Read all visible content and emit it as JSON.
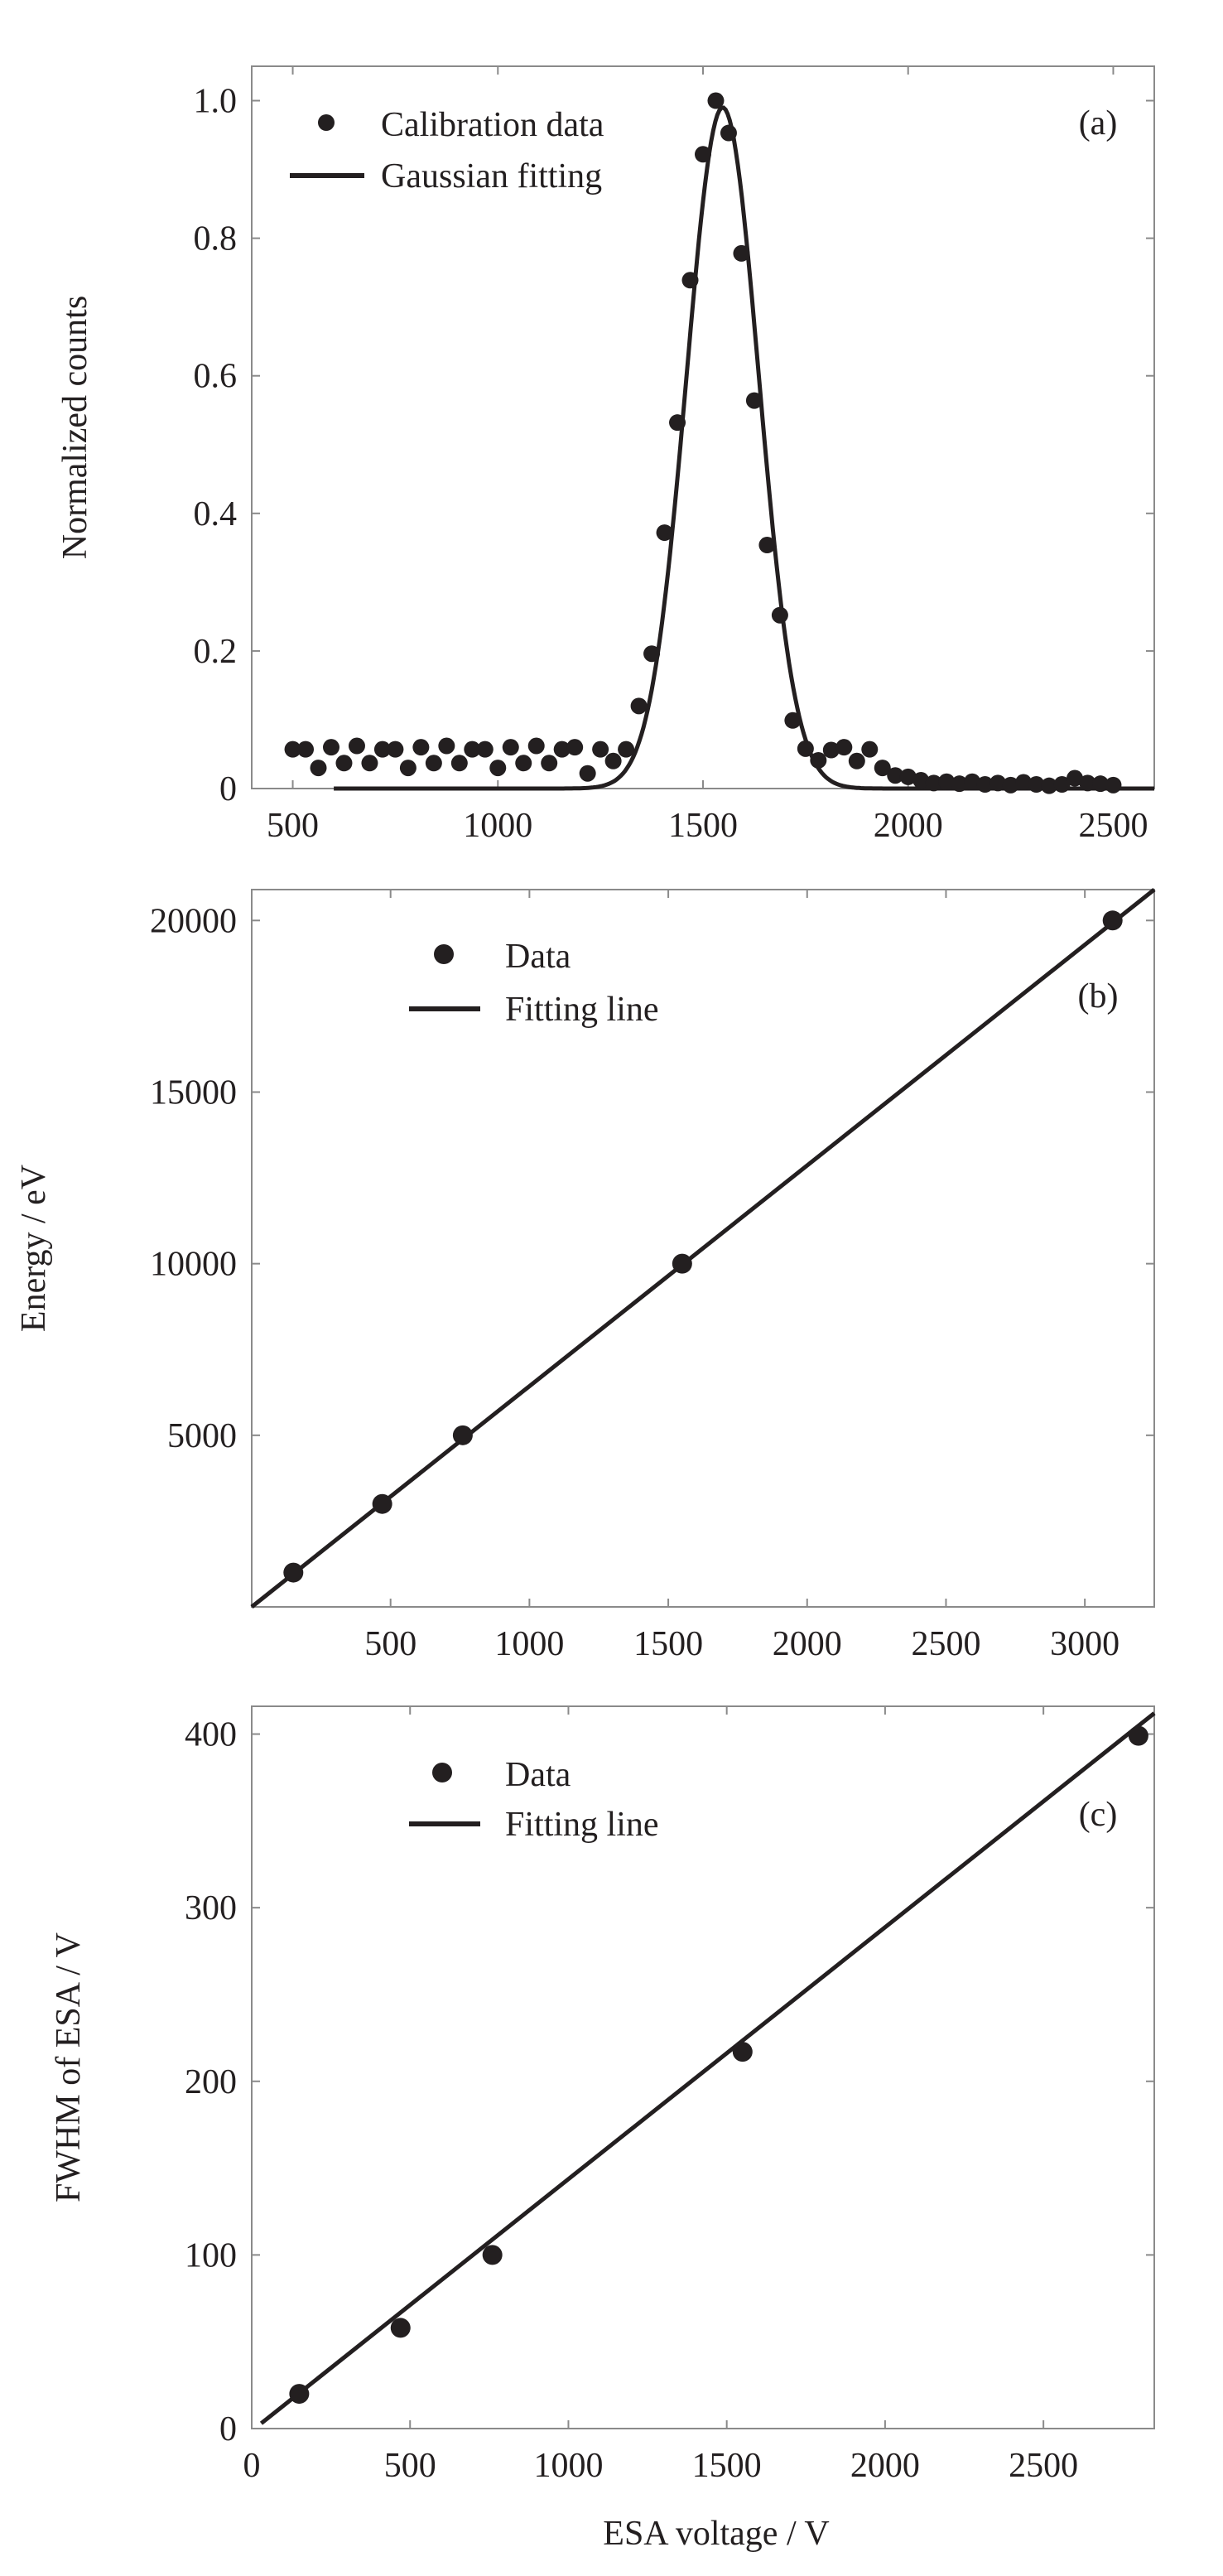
{
  "chart_data": [
    {
      "type": "scatter",
      "panel_label": "(a)",
      "xlabel": "",
      "ylabel": "Normalized counts",
      "xlim": [
        400,
        2600
      ],
      "ylim": [
        0,
        1.05
      ],
      "xticks": [
        500,
        1000,
        1500,
        2000,
        2500
      ],
      "yticks": [
        0,
        0.2,
        0.4,
        0.6,
        0.8,
        1.0
      ],
      "ytick_labels": [
        "0",
        "0.2",
        "0.4",
        "0.6",
        "0.8",
        "1.0"
      ],
      "legend": {
        "position": "top-left",
        "entries": [
          "Calibration data",
          "Gaussian fitting"
        ]
      },
      "series": [
        {
          "name": "Calibration data",
          "x_start": 500,
          "x_step": 31.25,
          "y": [
            0.057,
            0.057,
            0.03,
            0.06,
            0.037,
            0.062,
            0.037,
            0.057,
            0.057,
            0.03,
            0.06,
            0.037,
            0.062,
            0.037,
            0.057,
            0.057,
            0.03,
            0.06,
            0.037,
            0.062,
            0.037,
            0.057,
            0.06,
            0.022,
            0.057,
            0.04,
            0.057,
            0.12,
            0.196,
            0.372,
            0.532,
            0.739,
            0.922,
            1.0,
            0.953,
            0.778,
            0.564,
            0.354,
            0.252,
            0.099,
            0.058,
            0.041,
            0.056,
            0.06,
            0.04,
            0.057,
            0.03,
            0.019,
            0.017,
            0.012,
            0.008,
            0.01,
            0.007,
            0.01,
            0.006,
            0.008,
            0.005,
            0.009,
            0.006,
            0.004,
            0.006,
            0.015,
            0.008,
            0.007,
            0.005
          ]
        },
        {
          "name": "Gaussian fitting",
          "type": "gaussian",
          "amplitude": 0.99,
          "center": 1548,
          "sigma": 88
        }
      ]
    },
    {
      "type": "scatter",
      "panel_label": "(b)",
      "xlabel": "",
      "ylabel": "Energy / eV",
      "xlim": [
        0,
        3250
      ],
      "ylim": [
        0,
        20900
      ],
      "xticks": [
        500,
        1000,
        1500,
        2000,
        2500,
        3000
      ],
      "yticks": [
        5000,
        10000,
        15000,
        20000
      ],
      "ytick_labels": [
        "5000",
        "10000",
        "15000",
        "20000"
      ],
      "legend": {
        "position": "top-left",
        "entries": [
          "Data",
          "Fitting line"
        ]
      },
      "series": [
        {
          "name": "Data",
          "x": [
            150,
            470,
            760,
            1550,
            3100
          ],
          "y": [
            1000,
            3000,
            5000,
            10000,
            20000
          ]
        },
        {
          "name": "Fitting line",
          "type": "line",
          "x": [
            0,
            3250
          ],
          "y": [
            0,
            20900
          ]
        }
      ]
    },
    {
      "type": "scatter",
      "panel_label": "(c)",
      "xlabel": "ESA voltage / V",
      "ylabel": "FWHM of ESA / V",
      "xlim": [
        0,
        2850
      ],
      "ylim": [
        0,
        416
      ],
      "xticks": [
        0,
        500,
        1000,
        1500,
        2000,
        2500
      ],
      "yticks": [
        0,
        100,
        200,
        300,
        400
      ],
      "ytick_labels": [
        "0",
        "100",
        "200",
        "300",
        "400"
      ],
      "legend": {
        "position": "top-left",
        "entries": [
          "Data",
          "Fitting line"
        ]
      },
      "series": [
        {
          "name": "Data",
          "x": [
            150,
            470,
            760,
            1550,
            2800
          ],
          "y": [
            20,
            58,
            100,
            217,
            399
          ]
        },
        {
          "name": "Fitting line",
          "type": "line",
          "x": [
            30,
            2850
          ],
          "y": [
            3,
            412
          ]
        }
      ]
    }
  ]
}
